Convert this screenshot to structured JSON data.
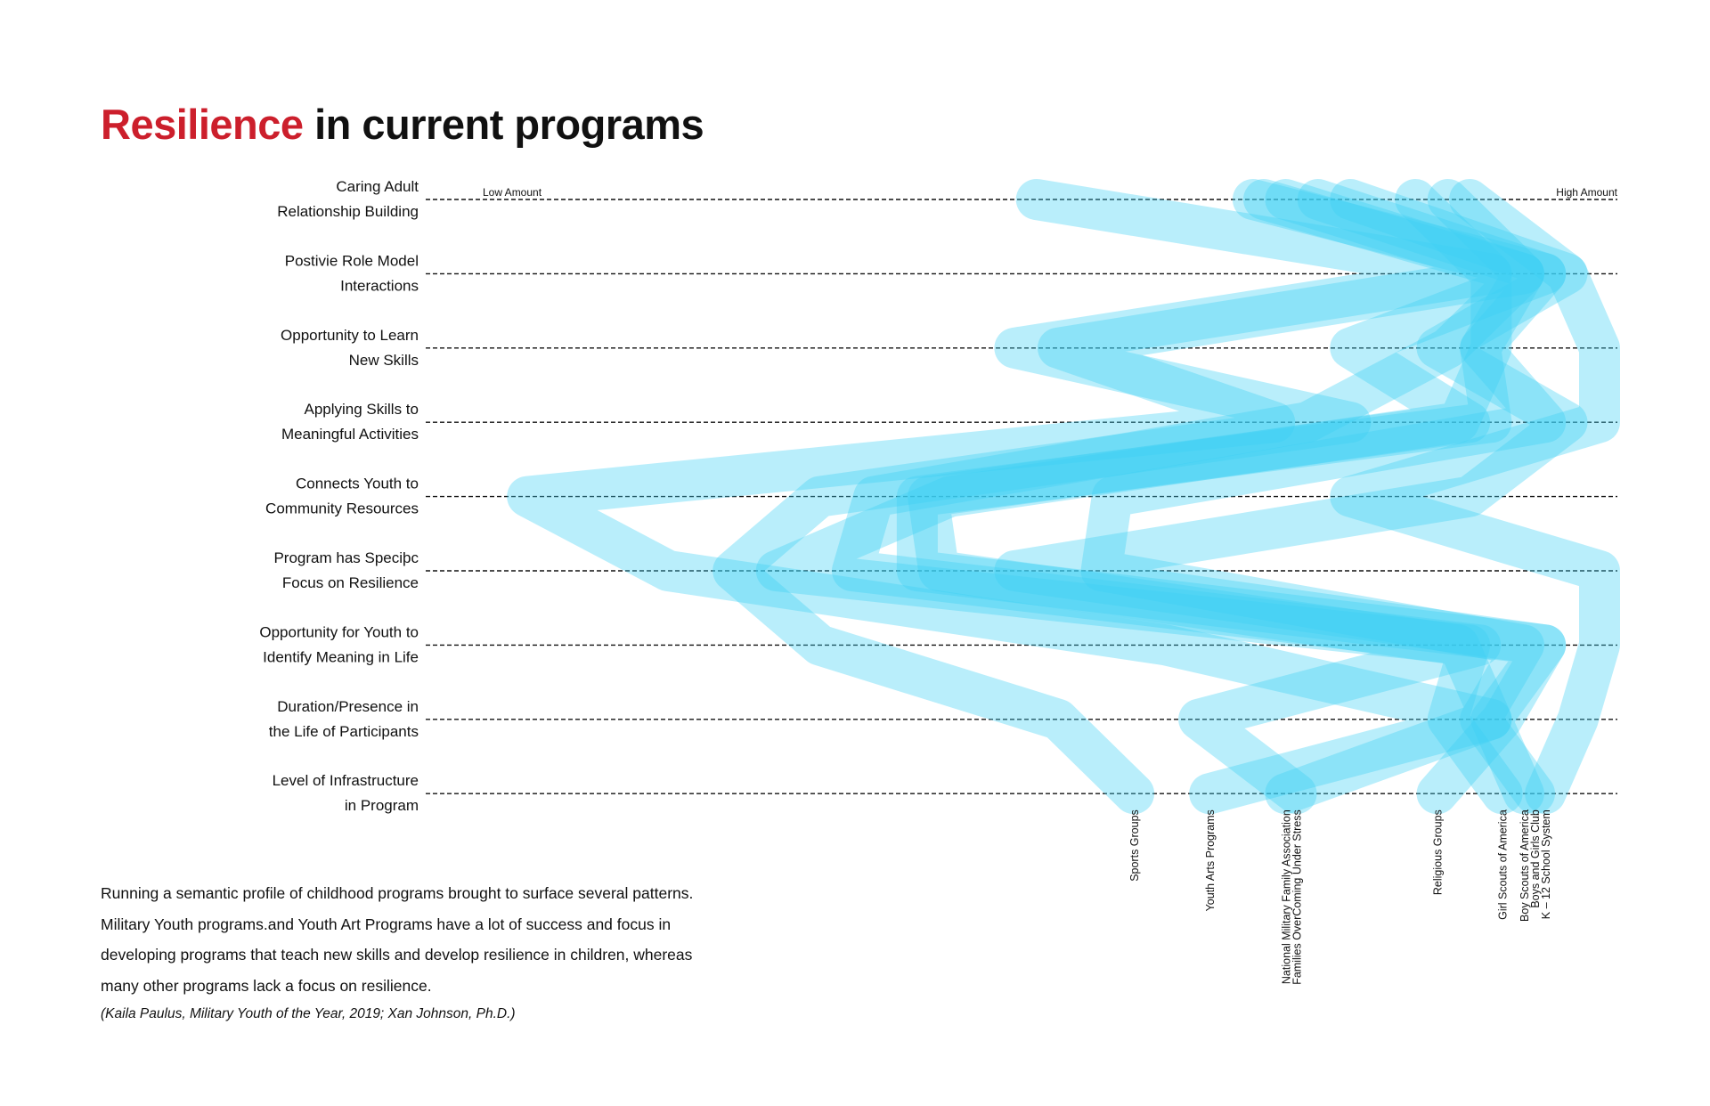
{
  "title": {
    "accent": "Resilience",
    "rest": " in current programs",
    "accent_color": "#cc1f2c"
  },
  "line_color": "#3dcff5",
  "body": {
    "lines": [
      "Running a semantic profile of childhood programs brought to surface several patterns.",
      "Military Youth programs.and Youth Art Programs have a lot of success and focus in",
      "developing programs that teach new skills and develop resilience in children, whereas",
      "many other programs lack a focus on resilience."
    ],
    "citation": "(Kaila Paulus, Military Youth of the Year, 2019; Xan Johnson, Ph.D.)"
  },
  "chart_data": {
    "type": "line",
    "orientation": "horizontal",
    "x_min_label": "Low Amount",
    "x_max_label": "High Amount",
    "xlim": [
      0,
      100
    ],
    "categories": [
      [
        "Caring Adult",
        "Relationship Building"
      ],
      [
        "Postivie Role Model",
        "Interactions"
      ],
      [
        "Opportunity to Learn",
        "New Skills"
      ],
      [
        "Applying Skills to",
        "Meaningful Activities"
      ],
      [
        "Connects Youth to",
        "Community Resources"
      ],
      [
        "Program has Speciþc",
        "Focus on Resilience"
      ],
      [
        "Opportunity for Youth to",
        "Identify Meaning in Life"
      ],
      [
        "Duration/Presence in",
        "the Life of Participants"
      ],
      [
        "Level of Infrastructure",
        "in Program"
      ]
    ],
    "series": [
      {
        "name": "Sports Groups",
        "values": [
          48,
          90,
          46,
          77,
          28,
          20,
          28,
          50,
          57
        ]
      },
      {
        "name": "Youth Arts Programs",
        "values": [
          71,
          93,
          50,
          70,
          1,
          14,
          60,
          90,
          64
        ]
      },
      {
        "name": "National Military Family Association",
        "values": [
          68,
          95,
          77,
          88,
          38,
          39,
          87,
          90,
          71
        ]
      },
      {
        "name": "Families OverComing Under Stress",
        "values": [
          69,
          93,
          86,
          73,
          33,
          31,
          89,
          63,
          72
        ]
      },
      {
        "name": "Religious Groups",
        "values": [
          77,
          97,
          85,
          97,
          88,
          46,
          95,
          91,
          85
        ]
      },
      {
        "name": "Girl Scouts of America",
        "values": [
          83,
          90,
          90,
          87,
          40,
          24,
          88,
          86,
          91
        ]
      },
      {
        "name": "Boy Scouts of America",
        "values": [
          86,
          93,
          89,
          90,
          37,
          37,
          95,
          90,
          93
        ]
      },
      {
        "name": "Boys and Girls Club",
        "values": [
          74,
          95,
          89,
          95,
          55,
          54,
          93,
          89,
          94
        ]
      },
      {
        "name": "K – 12 School System",
        "values": [
          88,
          97,
          100,
          100,
          77,
          100,
          100,
          98,
          95
        ]
      }
    ]
  }
}
